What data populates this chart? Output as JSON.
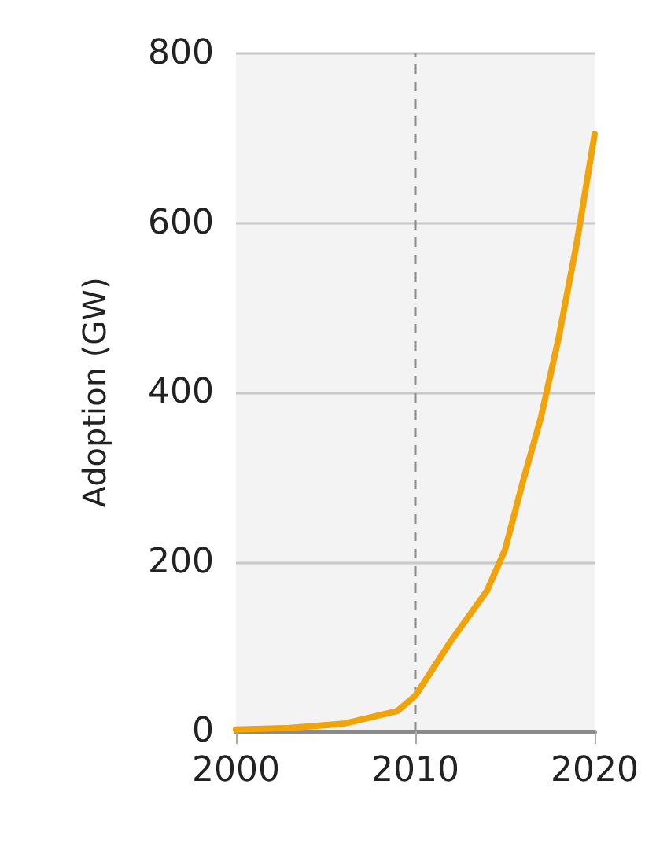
{
  "chart_data": {
    "type": "line",
    "ylabel": "Adoption (GW)",
    "x": [
      2000,
      2003,
      2006,
      2009,
      2010,
      2012,
      2014,
      2015,
      2016,
      2017,
      2018,
      2019,
      2020
    ],
    "series": [
      {
        "color": "#f0a30a",
        "values": [
          2,
          4,
          9,
          24,
          42,
          107,
          166,
          214,
          295,
          370,
          465,
          576,
          705
        ]
      }
    ],
    "xlim": [
      2000,
      2020
    ],
    "xticks": [
      2000,
      2010,
      2020
    ],
    "ylim": [
      0,
      800
    ],
    "yticks": [
      0,
      200,
      400,
      600,
      800
    ],
    "grid": "y",
    "marker": "none",
    "line_style": "solid",
    "ref_lines": [
      {
        "axis": "x",
        "value": 2010,
        "color": "#8c8c8c",
        "line_style": "dashed"
      }
    ]
  }
}
